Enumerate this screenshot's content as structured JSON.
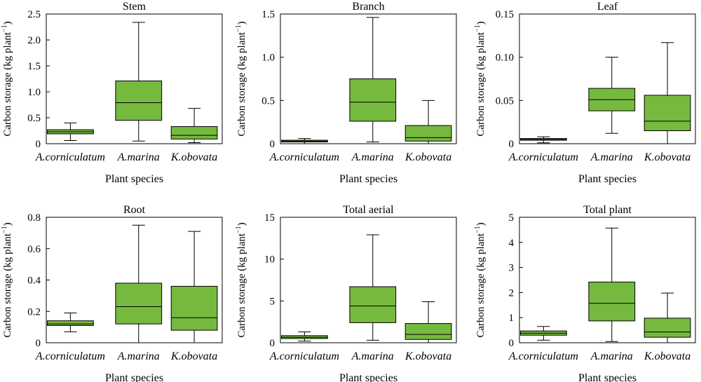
{
  "figure": {
    "xlabel": "Plant species",
    "ylabel_main": "Carbon storage (kg plant",
    "ylabel_sup": "−1",
    "ylabel_close": ")"
  },
  "colors": {
    "box_fill": "#76b93f",
    "line": "#000000",
    "background": "#ffffff"
  },
  "chart_data": [
    {
      "type": "box",
      "title": "Stem",
      "categories": [
        "A.corniculatum",
        "A.marina",
        "K.obovata"
      ],
      "ylim": [
        0,
        2.5
      ],
      "yticks": [
        0,
        0.5,
        1.0,
        1.5,
        2.0,
        2.5
      ],
      "ytick_labels": [
        "0",
        "0.5",
        "1.0",
        "1.5",
        "2.0",
        "2.5"
      ],
      "boxes": [
        {
          "min": 0.06,
          "q1": 0.19,
          "median": 0.23,
          "q3": 0.27,
          "max": 0.4
        },
        {
          "min": 0.05,
          "q1": 0.45,
          "median": 0.79,
          "q3": 1.21,
          "max": 2.34
        },
        {
          "min": 0.02,
          "q1": 0.09,
          "median": 0.16,
          "q3": 0.33,
          "max": 0.68
        }
      ]
    },
    {
      "type": "box",
      "title": "Branch",
      "categories": [
        "A.corniculatum",
        "A.marina",
        "K.obovata"
      ],
      "ylim": [
        0,
        1.5
      ],
      "yticks": [
        0,
        0.5,
        1.0,
        1.5
      ],
      "ytick_labels": [
        "0",
        "0.5",
        "1.0",
        "1.5"
      ],
      "boxes": [
        {
          "min": 0.0,
          "q1": 0.02,
          "median": 0.03,
          "q3": 0.04,
          "max": 0.06
        },
        {
          "min": 0.02,
          "q1": 0.26,
          "median": 0.48,
          "q3": 0.75,
          "max": 1.46
        },
        {
          "min": 0.0,
          "q1": 0.03,
          "median": 0.07,
          "q3": 0.21,
          "max": 0.5
        }
      ]
    },
    {
      "type": "box",
      "title": "Leaf",
      "categories": [
        "A.corniculatum",
        "A.marina",
        "K.obovata"
      ],
      "ylim": [
        0,
        0.15
      ],
      "yticks": [
        0,
        0.05,
        0.1,
        0.15
      ],
      "ytick_labels": [
        "0",
        "0.05",
        "0.10",
        "0.15"
      ],
      "boxes": [
        {
          "min": 0.001,
          "q1": 0.004,
          "median": 0.005,
          "q3": 0.006,
          "max": 0.008
        },
        {
          "min": 0.012,
          "q1": 0.038,
          "median": 0.051,
          "q3": 0.064,
          "max": 0.1
        },
        {
          "min": 0.0,
          "q1": 0.015,
          "median": 0.026,
          "q3": 0.056,
          "max": 0.117
        }
      ]
    },
    {
      "type": "box",
      "title": "Root",
      "categories": [
        "A.corniculatum",
        "A.marina",
        "K.obovata"
      ],
      "ylim": [
        0,
        0.8
      ],
      "yticks": [
        0,
        0.2,
        0.4,
        0.6,
        0.8
      ],
      "ytick_labels": [
        "0",
        "0.2",
        "0.4",
        "0.6",
        "0.8"
      ],
      "boxes": [
        {
          "min": 0.07,
          "q1": 0.11,
          "median": 0.12,
          "q3": 0.14,
          "max": 0.19
        },
        {
          "min": 0.0,
          "q1": 0.12,
          "median": 0.23,
          "q3": 0.38,
          "max": 0.75
        },
        {
          "min": 0.0,
          "q1": 0.08,
          "median": 0.16,
          "q3": 0.36,
          "max": 0.71
        }
      ]
    },
    {
      "type": "box",
      "title": "Total aerial",
      "categories": [
        "A.corniculatum",
        "A.marina",
        "K.obovata"
      ],
      "ylim": [
        0,
        15
      ],
      "yticks": [
        0,
        5,
        10,
        15
      ],
      "ytick_labels": [
        "0",
        "5",
        "10",
        "15"
      ],
      "boxes": [
        {
          "min": 0.2,
          "q1": 0.5,
          "median": 0.65,
          "q3": 0.85,
          "max": 1.3
        },
        {
          "min": 0.3,
          "q1": 2.4,
          "median": 4.4,
          "q3": 6.7,
          "max": 12.9
        },
        {
          "min": 0.0,
          "q1": 0.4,
          "median": 1.0,
          "q3": 2.3,
          "max": 4.9
        }
      ]
    },
    {
      "type": "box",
      "title": "Total plant",
      "categories": [
        "A.corniculatum",
        "A.marina",
        "K.obovata"
      ],
      "ylim": [
        0,
        5
      ],
      "yticks": [
        0,
        1,
        2,
        3,
        4,
        5
      ],
      "ytick_labels": [
        "0",
        "1",
        "2",
        "3",
        "4",
        "5"
      ],
      "boxes": [
        {
          "min": 0.1,
          "q1": 0.3,
          "median": 0.38,
          "q3": 0.47,
          "max": 0.65
        },
        {
          "min": 0.05,
          "q1": 0.87,
          "median": 1.57,
          "q3": 2.42,
          "max": 4.57
        },
        {
          "min": 0.0,
          "q1": 0.22,
          "median": 0.43,
          "q3": 0.98,
          "max": 1.98
        }
      ]
    }
  ]
}
